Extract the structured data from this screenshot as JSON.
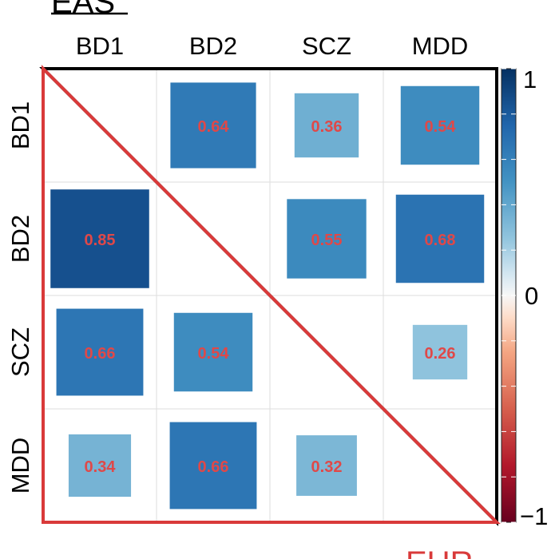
{
  "chart_data": {
    "type": "heatmap",
    "title_upper": "EAS",
    "title_lower": "EUR",
    "labels": [
      "BD1",
      "BD2",
      "SCZ",
      "MDD"
    ],
    "cells": [
      {
        "row": "BD1",
        "col": "BD2",
        "value": 0.64,
        "label": "0.64"
      },
      {
        "row": "BD1",
        "col": "SCZ",
        "value": 0.36,
        "label": "0.36"
      },
      {
        "row": "BD1",
        "col": "MDD",
        "value": 0.54,
        "label": "0.54"
      },
      {
        "row": "BD2",
        "col": "BD1",
        "value": 0.85,
        "label": "0.85"
      },
      {
        "row": "BD2",
        "col": "SCZ",
        "value": 0.55,
        "label": "0.55"
      },
      {
        "row": "BD2",
        "col": "MDD",
        "value": 0.68,
        "label": "0.68"
      },
      {
        "row": "SCZ",
        "col": "BD1",
        "value": 0.66,
        "label": "0.66"
      },
      {
        "row": "SCZ",
        "col": "BD2",
        "value": 0.54,
        "label": "0.54"
      },
      {
        "row": "SCZ",
        "col": "MDD",
        "value": 0.26,
        "label": "0.26"
      },
      {
        "row": "MDD",
        "col": "BD1",
        "value": 0.34,
        "label": "0.34"
      },
      {
        "row": "MDD",
        "col": "BD2",
        "value": 0.66,
        "label": "0.66"
      },
      {
        "row": "MDD",
        "col": "SCZ",
        "value": 0.32,
        "label": "0.32"
      }
    ],
    "colorbar": {
      "range": [
        -1,
        1
      ],
      "tick_labels": [
        "1",
        "0",
        "−1"
      ],
      "tick_values": [
        1,
        0,
        -1
      ]
    },
    "colors": {
      "value_label": "#e04848",
      "upper_triangle": "#000000",
      "lower_triangle": "#d93a3a",
      "grid": "#dedede"
    }
  }
}
